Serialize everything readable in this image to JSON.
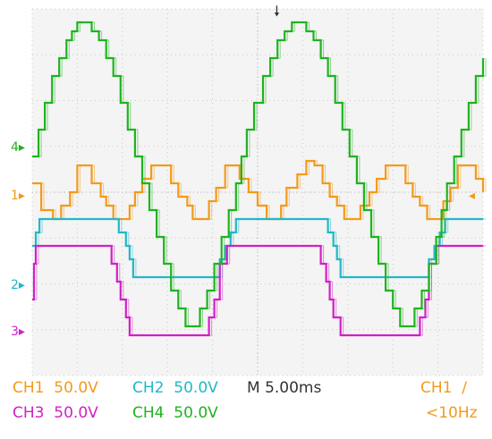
{
  "chart_data": {
    "type": "line",
    "title": "",
    "xlabel": "",
    "ylabel": "",
    "grid": true,
    "ylim": [
      -4.1,
      4.1
    ],
    "xlim": [
      0,
      50
    ],
    "x_unit": "ms",
    "series": [
      {
        "name": "CH1",
        "color": "#f39a1b",
        "marker": "1",
        "x": [
          0,
          1.0,
          2.3,
          3.2,
          4.2,
          5.0,
          5.8,
          6.6,
          7.6,
          8.2,
          9.0,
          9.8,
          10.8,
          11.4,
          12.2,
          13.2,
          14.4,
          15.4,
          16.2,
          17.2,
          17.8,
          18.8,
          19.6,
          20.4,
          21.4,
          22.2,
          23.0,
          24.0,
          25.0,
          26.0,
          27.0,
          27.6,
          28.2,
          29.4,
          30.4,
          31.3,
          32.2,
          33.0,
          33.8,
          34.6,
          35.4,
          36.4,
          37.4,
          38.2,
          39.2,
          40.4,
          41.4,
          42.2,
          43.0,
          43.8,
          44.8,
          45.6,
          46.4,
          47.2,
          48.2,
          49.2,
          50
        ],
        "y": [
          0.2,
          -0.4,
          -0.6,
          -0.3,
          0.0,
          0.6,
          0.6,
          0.2,
          -0.1,
          -0.3,
          -0.6,
          -0.6,
          -0.3,
          0.0,
          0.3,
          0.6,
          0.6,
          0.2,
          -0.1,
          -0.3,
          -0.6,
          -0.6,
          -0.2,
          0.1,
          0.6,
          0.6,
          0.3,
          0.0,
          -0.3,
          -0.6,
          -0.6,
          -0.3,
          0.1,
          0.4,
          0.7,
          0.6,
          0.2,
          -0.1,
          -0.3,
          -0.6,
          -0.6,
          -0.3,
          0.0,
          0.3,
          0.6,
          0.6,
          0.2,
          -0.1,
          -0.3,
          -0.6,
          -0.6,
          -0.2,
          0.1,
          0.6,
          0.6,
          0.3,
          0.0
        ]
      },
      {
        "name": "CH2",
        "color": "#21b8c8",
        "marker": "2",
        "x": [
          0,
          0.4,
          0.8,
          9.0,
          9.6,
          10.4,
          10.8,
          11.2,
          20.4,
          20.8,
          21.4,
          22.0,
          22.6,
          32.2,
          32.8,
          33.4,
          33.8,
          34.2,
          43.4,
          44.0,
          44.6,
          45.2,
          45.8,
          50
        ],
        "y": [
          -1.2,
          -0.9,
          -0.6,
          -0.6,
          -0.9,
          -1.2,
          -1.5,
          -1.9,
          -1.9,
          -1.5,
          -1.2,
          -0.9,
          -0.6,
          -0.6,
          -0.9,
          -1.2,
          -1.5,
          -1.9,
          -1.9,
          -1.5,
          -1.2,
          -0.9,
          -0.6,
          -0.6
        ]
      },
      {
        "name": "CH3",
        "color": "#d21fc7",
        "marker": "3",
        "x": [
          0,
          0.2,
          0.4,
          8.2,
          8.8,
          9.4,
          9.8,
          10.4,
          10.8,
          19.0,
          19.6,
          20.2,
          20.8,
          21.6,
          31.4,
          32.0,
          32.6,
          33.0,
          33.4,
          34.2,
          42.4,
          43.0,
          43.6,
          44.0,
          44.8,
          50
        ],
        "y": [
          -2.4,
          -1.6,
          -1.2,
          -1.2,
          -1.6,
          -2.0,
          -2.4,
          -2.8,
          -3.2,
          -3.2,
          -2.8,
          -2.4,
          -1.6,
          -1.2,
          -1.2,
          -1.6,
          -2.0,
          -2.4,
          -2.8,
          -3.2,
          -3.2,
          -2.8,
          -2.4,
          -1.6,
          -1.2,
          -1.2
        ]
      },
      {
        "name": "CH4",
        "color": "#1fb31f",
        "marker": "4",
        "x": [
          0,
          0.7,
          1.4,
          2.2,
          3.0,
          3.8,
          4.4,
          5.0,
          5.6,
          6.6,
          7.4,
          8.2,
          9.0,
          9.8,
          10.6,
          11.4,
          12.2,
          13.0,
          13.8,
          14.6,
          15.4,
          16.2,
          17.0,
          17.8,
          18.6,
          19.4,
          20.2,
          21.0,
          21.8,
          22.6,
          23.2,
          23.8,
          24.6,
          25.6,
          26.4,
          27.2,
          28.0,
          28.8,
          29.6,
          30.4,
          31.2,
          32.0,
          32.8,
          33.6,
          34.4,
          35.2,
          36.0,
          36.8,
          37.6,
          38.4,
          39.2,
          40.0,
          40.8,
          41.6,
          42.4,
          43.2,
          44.0,
          44.8,
          45.4,
          46.0,
          46.8,
          47.6,
          48.4,
          49.2,
          50
        ],
        "y": [
          0.8,
          1.4,
          2.0,
          2.6,
          3.0,
          3.4,
          3.6,
          3.8,
          3.8,
          3.6,
          3.4,
          3.0,
          2.6,
          2.0,
          1.4,
          0.8,
          0.2,
          -0.4,
          -1.0,
          -1.6,
          -2.2,
          -2.6,
          -3.0,
          -3.0,
          -2.6,
          -2.2,
          -1.6,
          -1.0,
          -0.4,
          0.2,
          0.8,
          1.4,
          2.0,
          2.6,
          3.0,
          3.4,
          3.6,
          3.8,
          3.8,
          3.6,
          3.4,
          3.0,
          2.6,
          2.0,
          1.4,
          0.8,
          0.2,
          -0.4,
          -1.0,
          -1.6,
          -2.2,
          -2.6,
          -3.0,
          -3.0,
          -2.6,
          -2.2,
          -1.6,
          -1.0,
          -0.4,
          0.2,
          0.8,
          1.4,
          2.0,
          2.6,
          3.0
        ]
      }
    ],
    "trigger_position_ms": 22.5,
    "readouts": {
      "ch1_label": "CH1",
      "ch1_scale": "50.0V",
      "ch2_label": "CH2",
      "ch2_scale": "50.0V",
      "ch3_label": "CH3",
      "ch3_scale": "50.0V",
      "ch4_label": "CH4",
      "ch4_scale": "50.0V",
      "timebase": "M 5.00ms",
      "trigger_source": "CH1",
      "trigger_slope_glyph": "∕",
      "trigger_freq": "<10Hz"
    }
  }
}
